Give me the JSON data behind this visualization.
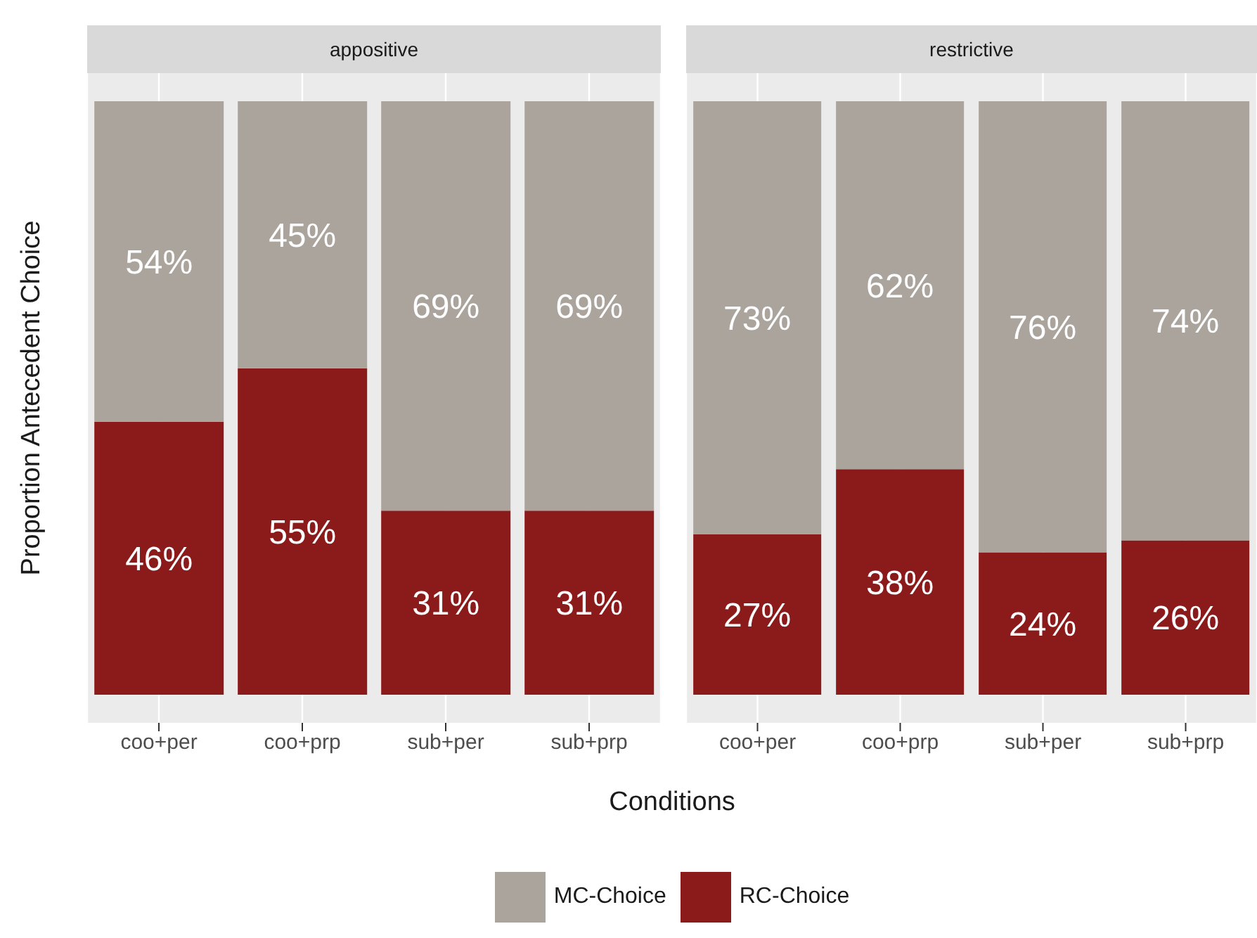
{
  "chart_data": [
    {
      "type": "bar",
      "title": "appositive",
      "xlabel": "Conditions",
      "ylabel": "Proportion Antecedent Choice",
      "categories": [
        "coo+per",
        "coo+prp",
        "sub+per",
        "sub+prp"
      ],
      "stacked": true,
      "tick_labels": "x",
      "grid": "x",
      "legend": "bottom",
      "series": [
        {
          "name": "RC-Choice",
          "color": "#8b1a1a",
          "values": [
            46,
            55,
            31,
            31
          ],
          "value_labels": [
            "46%",
            "55%",
            "31%",
            "31%"
          ]
        },
        {
          "name": "MC-Choice",
          "color": "#aba49d",
          "values": [
            54,
            45,
            69,
            69
          ],
          "value_labels": [
            "54%",
            "45%",
            "69%",
            "69%"
          ]
        }
      ]
    },
    {
      "type": "bar",
      "title": "restrictive",
      "categories": [
        "coo+per",
        "coo+prp",
        "sub+per",
        "sub+prp"
      ],
      "stacked": true,
      "tick_labels": "x",
      "grid": "x",
      "series": [
        {
          "color": "#8b1a1a",
          "values": [
            27,
            38,
            24,
            26
          ],
          "value_labels": [
            "27%",
            "38%",
            "24%",
            "26%"
          ]
        },
        {
          "color": "#aba49d",
          "values": [
            73,
            62,
            76,
            74
          ],
          "value_labels": [
            "73%",
            "62%",
            "76%",
            "74%"
          ]
        }
      ]
    }
  ]
}
